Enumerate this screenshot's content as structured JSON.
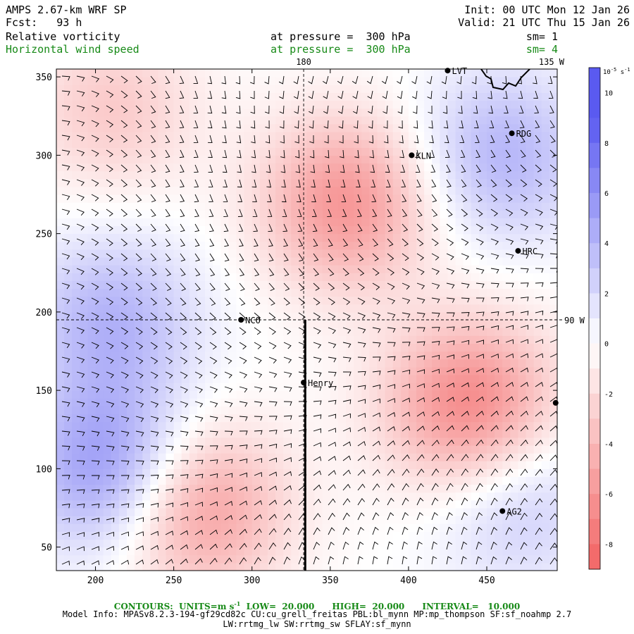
{
  "header": {
    "model": "AMPS 2.67-km WRF SP",
    "init": "Init: 00 UTC Mon 12 Jan 26",
    "fcst": "Fcst:   93 h",
    "valid": "Valid: 21 UTC Thu 15 Jan 26",
    "field1_name": "Relative vorticity",
    "field1_level": "at pressure =  300 hPa",
    "field1_sm": "sm= 1",
    "field2_name": "Horizontal wind speed",
    "field2_level": "at pressure =  300 hPa",
    "field2_sm": "sm= 4"
  },
  "footer": {
    "contours": "CONTOURS:  UNITS=m s",
    "contours_sup": "-1",
    "contours_rest": "  LOW=  20.000      HIGH=  20.000      INTERVAL=   10.000",
    "model_info": "Model Info: MPASv8.2.3-194-gf29cd82c CU:cu_grell_freitas PBL:bl_mynn MP:mp_thompson SF:sf_noahmp 2.7",
    "physics": "LW:rrtmg_lw SW:rrtmg_sw SFLAY:sf_mynn"
  },
  "colors": {
    "positive": "#5a5af0",
    "negative": "#f26262",
    "wind_barb": "#000000",
    "header_green": "#178a17"
  },
  "chart_data": {
    "type": "heatmap",
    "title": "Relative vorticity / Horizontal wind speed at 300 hPa",
    "xlim": [
      175,
      495
    ],
    "ylim": [
      35,
      355
    ],
    "x_ticks": [
      200,
      250,
      300,
      350,
      400,
      450
    ],
    "y_ticks": [
      50,
      100,
      150,
      200,
      250,
      300,
      350
    ],
    "reference_lines": {
      "vertical_x": 333,
      "vertical_label": "180",
      "horizontal_y": 195,
      "horizontal_label": "90 W",
      "top_right_label": "135 W"
    },
    "colorbar": {
      "units": "10",
      "units_exp": "-5",
      "units_rest": " s",
      "units_rest_exp": "-1",
      "levels": [
        10,
        8,
        6,
        4,
        2,
        0,
        -2,
        -4,
        -6,
        -8
      ],
      "ticks": [
        "10",
        "8",
        "6",
        "4",
        "2",
        "0",
        "-2",
        "-4",
        "-6",
        "-8"
      ],
      "range": [
        -9,
        11
      ]
    },
    "stations": [
      {
        "name": "LVT",
        "x": 425,
        "y": 354
      },
      {
        "name": "RDG",
        "x": 466,
        "y": 314
      },
      {
        "name": "KLN",
        "x": 402,
        "y": 300
      },
      {
        "name": "HRC",
        "x": 470,
        "y": 239
      },
      {
        "name": "NCO",
        "x": 293,
        "y": 195
      },
      {
        "name": "Henry",
        "x": 333,
        "y": 155
      },
      {
        "name": "AG2",
        "x": 460,
        "y": 73
      },
      {
        "name": "",
        "x": 494,
        "y": 142
      }
    ],
    "meridian_line": {
      "x": 334,
      "y_from": 195,
      "y_to": 35
    },
    "vorticity_features": [
      {
        "sign": "negative",
        "label": "large negative band NW-SE",
        "x": 360,
        "y": 270,
        "amplitude": -6
      },
      {
        "sign": "negative",
        "label": "south-east negative band",
        "x": 440,
        "y": 140,
        "amplitude": -7
      },
      {
        "sign": "negative",
        "label": "south negative streak",
        "x": 265,
        "y": 75,
        "amplitude": -6
      },
      {
        "sign": "negative",
        "label": "north-west negative",
        "x": 210,
        "y": 330,
        "amplitude": -3
      },
      {
        "sign": "positive",
        "label": "south-west positive",
        "x": 210,
        "y": 100,
        "amplitude": 6
      },
      {
        "sign": "positive",
        "label": "west positive",
        "x": 210,
        "y": 195,
        "amplitude": 4
      },
      {
        "sign": "positive",
        "label": "north-east positive",
        "x": 460,
        "y": 300,
        "amplitude": 4
      },
      {
        "sign": "positive",
        "label": "south-east positive",
        "x": 470,
        "y": 80,
        "amplitude": 3
      }
    ]
  }
}
